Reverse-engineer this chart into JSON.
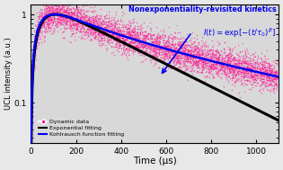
{
  "title": "Nonexponentiality-revisited kinetics",
  "xlabel": "Time (μs)",
  "ylabel": "UCL intensity (a.u.)",
  "xlim": [
    0,
    1100
  ],
  "ylim": [
    0.035,
    1.3
  ],
  "bg_color": "#e8e8e8",
  "plot_bg_color": "#d8d8d8",
  "scatter_color": "#FF1493",
  "exp_fit_color": "#000000",
  "kohlrausch_color": "#0000EE",
  "title_color": "#0000EE",
  "formula_color": "#0000EE",
  "formula_text": "$I(t) = \\exp[-(t/\\tau_0)^{\\beta}]$",
  "legend_entries": [
    "Dynamic data",
    "Exponential fitting",
    "Kohlrausch function fitting"
  ],
  "rise_time_const": 55,
  "exp_decay_const": 340,
  "kohlrausch_tau": 280,
  "kohlrausch_beta": 0.62,
  "n_scatter": 5000,
  "seed": 42
}
